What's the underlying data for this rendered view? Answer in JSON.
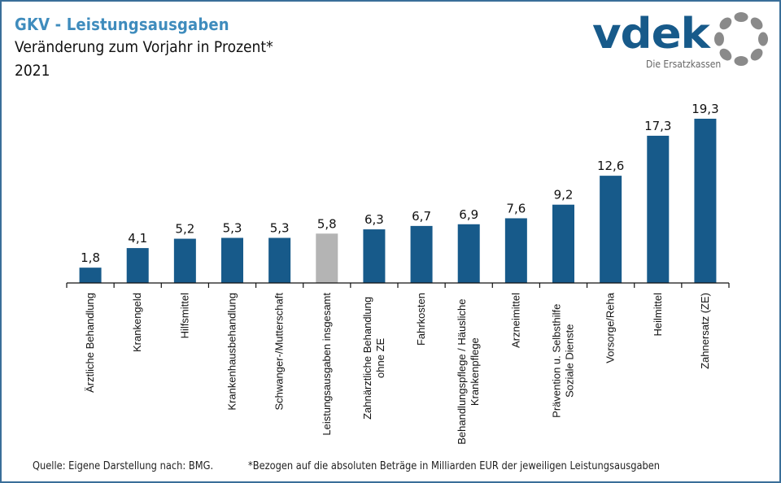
{
  "header": {
    "title": "GKV - Leistungsausgaben",
    "subtitle": "Veränderung zum Vorjahr in Prozent*",
    "year": "2021"
  },
  "logo": {
    "wordmark": "vdek",
    "tagline": "Die Ersatzkassen",
    "icon": "dotted-ring-icon"
  },
  "colors": {
    "bar": "#175a8a",
    "highlight_bar": "#b4b4b4",
    "title": "#3f8cbd",
    "frame": "#3a6e99"
  },
  "footer": {
    "source": "Quelle: Eigene Darstellung nach: BMG.",
    "note": "*Bezogen auf die absoluten Beträge in Milliarden EUR der jeweiligen Leistungsausgaben"
  },
  "chart_data": {
    "type": "bar",
    "title": "GKV - Leistungsausgaben",
    "subtitle": "Veränderung zum Vorjahr in Prozent* 2021",
    "xlabel": "",
    "ylabel": "",
    "ylim": [
      0,
      19.3
    ],
    "grid": false,
    "legend": "none",
    "categories": [
      [
        "Ärztliche Behandlung"
      ],
      [
        "Krankengeld"
      ],
      [
        "Hilfsmittel"
      ],
      [
        "Krankenhausbehandlung"
      ],
      [
        "Schwanger-/Mutterschaft"
      ],
      [
        "Leistungsausgaben insgesamt"
      ],
      [
        "Zahnärztliche Behandlung",
        "ohne ZE"
      ],
      [
        "Fahrkosten"
      ],
      [
        "Behandlungspflege / Häusliche",
        "Krankenpflege"
      ],
      [
        "Arzneimittel"
      ],
      [
        "Prävention u. Selbsthilfe",
        "Soziale Dienste"
      ],
      [
        "Vorsorge/Reha"
      ],
      [
        "Heilmittel"
      ],
      [
        "Zahnersatz (ZE)"
      ]
    ],
    "values": [
      1.8,
      4.1,
      5.2,
      5.3,
      5.3,
      5.8,
      6.3,
      6.7,
      6.9,
      7.6,
      9.2,
      12.6,
      17.3,
      19.3
    ],
    "value_labels": [
      "1,8",
      "4,1",
      "5,2",
      "5,3",
      "5,3",
      "5,8",
      "6,3",
      "6,7",
      "6,9",
      "7,6",
      "9,2",
      "12,6",
      "17,3",
      "19,3"
    ],
    "highlight_index": 5
  }
}
